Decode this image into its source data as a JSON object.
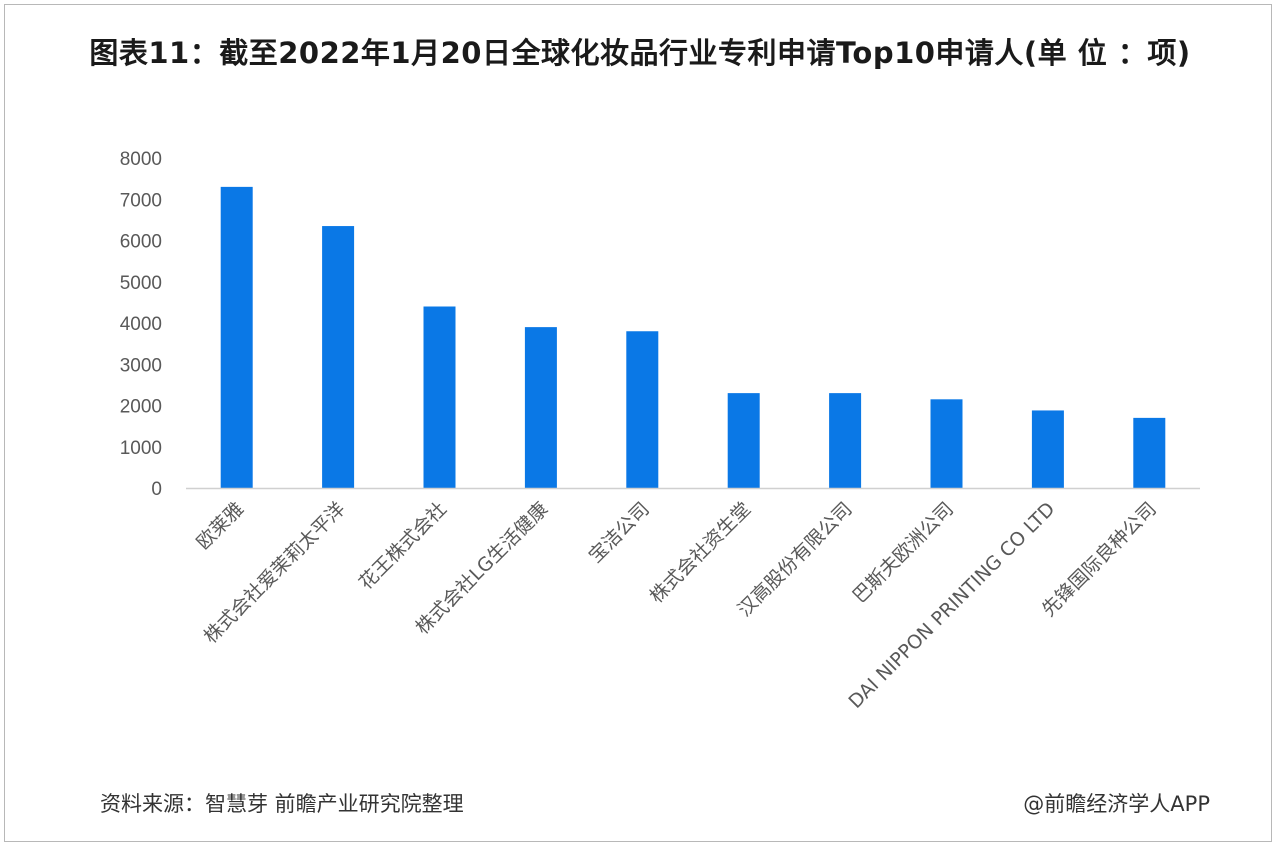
{
  "title": "图表11：截至2022年1月20日全球化妆品行业专利申请Top10申请人(单 位 ：项)",
  "source": "资料来源：智慧芽 前瞻产业研究院整理",
  "brand": "@前瞻经济学人APP",
  "colors": {
    "bar": "#0a78e6",
    "axis": "#d0d0d0",
    "text": "#595959"
  },
  "chart_data": {
    "type": "bar",
    "title": "图表11：截至2022年1月20日全球化妆品行业专利申请Top10申请人(单 位 ：项)",
    "xlabel": "",
    "ylabel": "",
    "ylim": [
      0,
      8000
    ],
    "yticks": [
      0,
      1000,
      2000,
      3000,
      4000,
      5000,
      6000,
      7000,
      8000
    ],
    "grid": false,
    "legend": "none",
    "categories": [
      "欧莱雅",
      "株式会社爱茉莉太平洋",
      "花王株式会社",
      "株式会社LG生活健康",
      "宝洁公司",
      "株式会社资生堂",
      "汉高股份有限公司",
      "巴斯夫欧洲公司",
      "DAI NIPPON PRINTING CO LTD",
      "先锋国际良种公司"
    ],
    "values": [
      7300,
      6350,
      4400,
      3900,
      3800,
      2300,
      2300,
      2150,
      1880,
      1700
    ]
  }
}
